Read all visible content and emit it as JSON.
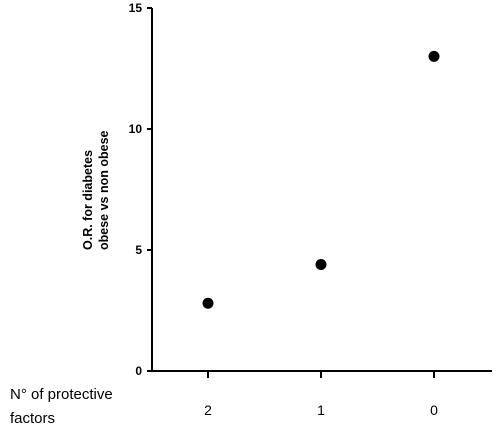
{
  "chart_data": {
    "type": "scatter",
    "categories": [
      "2",
      "1",
      "0"
    ],
    "values": [
      2.8,
      4.4,
      13.0
    ],
    "ylim": [
      0,
      15
    ],
    "yticks": [
      "0",
      "5",
      "10",
      "15"
    ],
    "ylabel_lines": [
      "O.R. for diabetes",
      "obese vs non obese"
    ],
    "xlabel_lines": [
      "N° of protective",
      "factors"
    ],
    "grid": false,
    "marker_color": "#000000"
  }
}
